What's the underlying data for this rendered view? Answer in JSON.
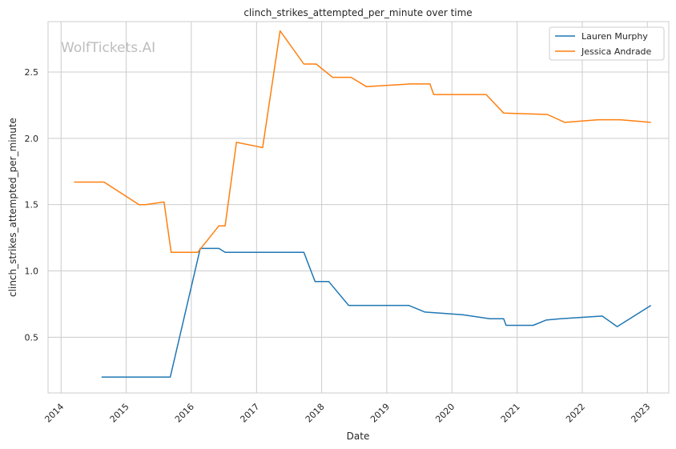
{
  "chart_data": {
    "type": "line",
    "title": "clinch_strikes_attempted_per_minute over time",
    "xlabel": "Date",
    "ylabel": "clinch_strikes_attempted_per_minute",
    "watermark": "WolfTickets.AI",
    "x_ticks": [
      "2014",
      "2015",
      "2016",
      "2017",
      "2018",
      "2019",
      "2020",
      "2021",
      "2022",
      "2023"
    ],
    "y_ticks": [
      "0.5",
      "1.0",
      "1.5",
      "2.0",
      "2.5"
    ],
    "xlim": [
      "2013-10-20",
      "2023-05-01"
    ],
    "ylim": [
      0.08,
      2.88
    ],
    "grid": true,
    "legend_position": "top-right",
    "series": [
      {
        "name": "Lauren Murphy",
        "color": "#1f77b4",
        "points": [
          [
            "2014-08-16",
            0.2
          ],
          [
            "2015-09-05",
            0.2
          ],
          [
            "2016-02-20",
            1.17
          ],
          [
            "2016-06-04",
            1.17
          ],
          [
            "2016-07-09",
            1.14
          ],
          [
            "2017-09-23",
            1.14
          ],
          [
            "2017-11-25",
            0.92
          ],
          [
            "2018-02-10",
            0.92
          ],
          [
            "2018-06-01",
            0.74
          ],
          [
            "2019-05-04",
            0.74
          ],
          [
            "2019-08-03",
            0.69
          ],
          [
            "2020-03-01",
            0.67
          ],
          [
            "2020-08-01",
            0.64
          ],
          [
            "2020-10-17",
            0.64
          ],
          [
            "2020-10-31",
            0.59
          ],
          [
            "2021-04-01",
            0.59
          ],
          [
            "2021-06-12",
            0.63
          ],
          [
            "2021-09-01",
            0.64
          ],
          [
            "2022-04-23",
            0.66
          ],
          [
            "2022-07-16",
            0.58
          ],
          [
            "2023-01-21",
            0.74
          ]
        ]
      },
      {
        "name": "Jessica Andrade",
        "color": "#ff7f0e",
        "points": [
          [
            "2014-03-15",
            1.67
          ],
          [
            "2014-08-30",
            1.67
          ],
          [
            "2015-03-14",
            1.5
          ],
          [
            "2015-04-18",
            1.5
          ],
          [
            "2015-08-01",
            1.52
          ],
          [
            "2015-09-10",
            1.14
          ],
          [
            "2016-02-06",
            1.14
          ],
          [
            "2016-06-04",
            1.34
          ],
          [
            "2016-07-09",
            1.34
          ],
          [
            "2016-09-10",
            1.97
          ],
          [
            "2017-02-04",
            1.93
          ],
          [
            "2017-05-13",
            2.81
          ],
          [
            "2017-09-23",
            2.56
          ],
          [
            "2017-12-01",
            2.56
          ],
          [
            "2018-03-03",
            2.46
          ],
          [
            "2018-06-15",
            2.46
          ],
          [
            "2018-09-08",
            2.39
          ],
          [
            "2019-05-11",
            2.41
          ],
          [
            "2019-08-31",
            2.41
          ],
          [
            "2019-09-21",
            2.33
          ],
          [
            "2020-07-11",
            2.33
          ],
          [
            "2020-10-17",
            2.19
          ],
          [
            "2021-06-19",
            2.18
          ],
          [
            "2021-09-25",
            2.12
          ],
          [
            "2022-04-01",
            2.14
          ],
          [
            "2022-08-01",
            2.14
          ],
          [
            "2023-01-21",
            2.12
          ]
        ]
      }
    ]
  }
}
